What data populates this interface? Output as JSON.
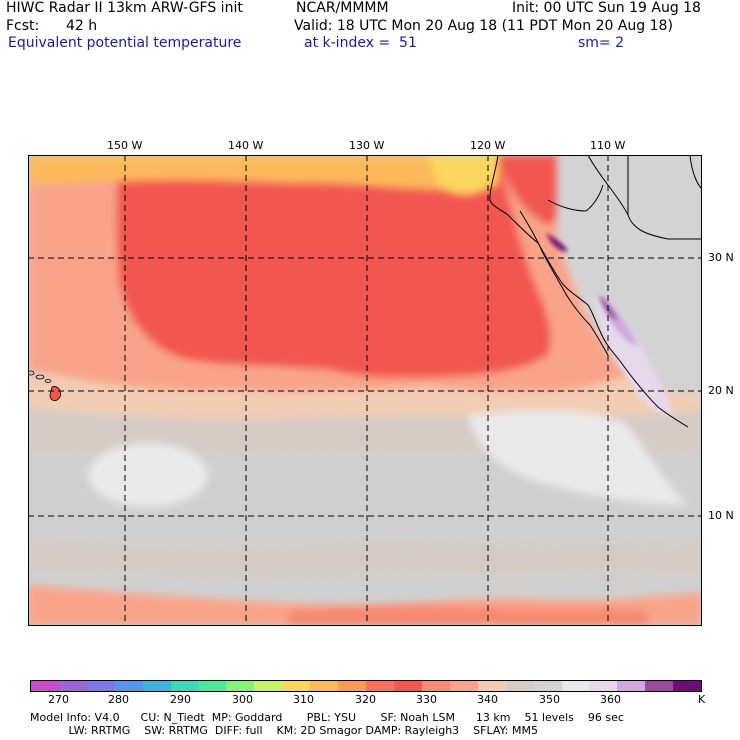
{
  "header": {
    "title": "HIWC Radar II 13km ARW-GFS init",
    "org": "NCAR/MMMM",
    "init": "Init: 00 UTC Sun 19 Aug 18",
    "fcst_label": "Fcst:",
    "fcst_value": "42 h",
    "valid": "Valid: 18 UTC Mon 20 Aug 18 (11 PDT Mon 20 Aug 18)",
    "field": "Equivalent potential temperature",
    "level": "at k-index =  51",
    "smoothing": "sm= 2"
  },
  "map": {
    "lon_labels": [
      "150 W",
      "140 W",
      "130 W",
      "120 W",
      "110 W"
    ],
    "lat_labels": [
      "30 N",
      "20 N",
      "10 N"
    ]
  },
  "colorbar": {
    "colors": [
      "#c64fc6",
      "#9c67d4",
      "#7b79e6",
      "#5596ec",
      "#3fb3dc",
      "#3ad7b9",
      "#4ee89a",
      "#86f27a",
      "#c8f46a",
      "#fad75e",
      "#fbb95c",
      "#f99b5a",
      "#f7745a",
      "#f25751",
      "#f78a72",
      "#f9a48a",
      "#f2cdb4",
      "#d6cbc4",
      "#d3d3d3",
      "#e9e9e9",
      "#e8d8ec",
      "#cfa8df",
      "#9b4a9e",
      "#6e0d78"
    ],
    "labels": [
      "270",
      "280",
      "290",
      "300",
      "310",
      "320",
      "330",
      "340",
      "350",
      "360",
      "K"
    ]
  },
  "footer": {
    "line1": "Model Info: V4.0      CU: N_Tiedt  MP: Goddard       PBL: YSU       SF: Noah LSM      13 km    51 levels    96 sec",
    "line2": "           LW: RRTMG    SW: RRTMG  DIFF: full    KM: 2D Smagor DAMP: Rayleigh3    SFLAY: MM5"
  }
}
